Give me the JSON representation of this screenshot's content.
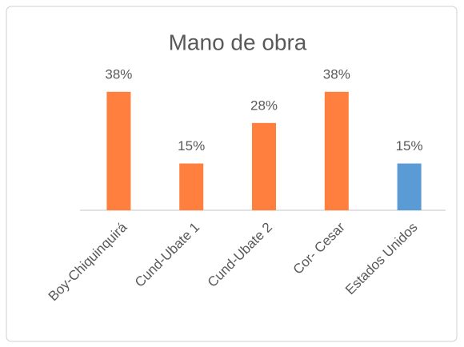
{
  "chart_data": {
    "type": "bar",
    "title": "Mano de obra",
    "categories": [
      "Boy-Chiquinquirá",
      "Cund-Ubate 1",
      "Cund-Ubate 2",
      "Cor- Cesar",
      "Estados Unidos"
    ],
    "values": [
      38,
      15,
      28,
      38,
      15
    ],
    "value_labels": [
      "38%",
      "15%",
      "28%",
      "38%",
      "15%"
    ],
    "colors": [
      "#ff7f3f",
      "#ff7f3f",
      "#ff7f3f",
      "#ff7f3f",
      "#5b9bd5"
    ]
  }
}
